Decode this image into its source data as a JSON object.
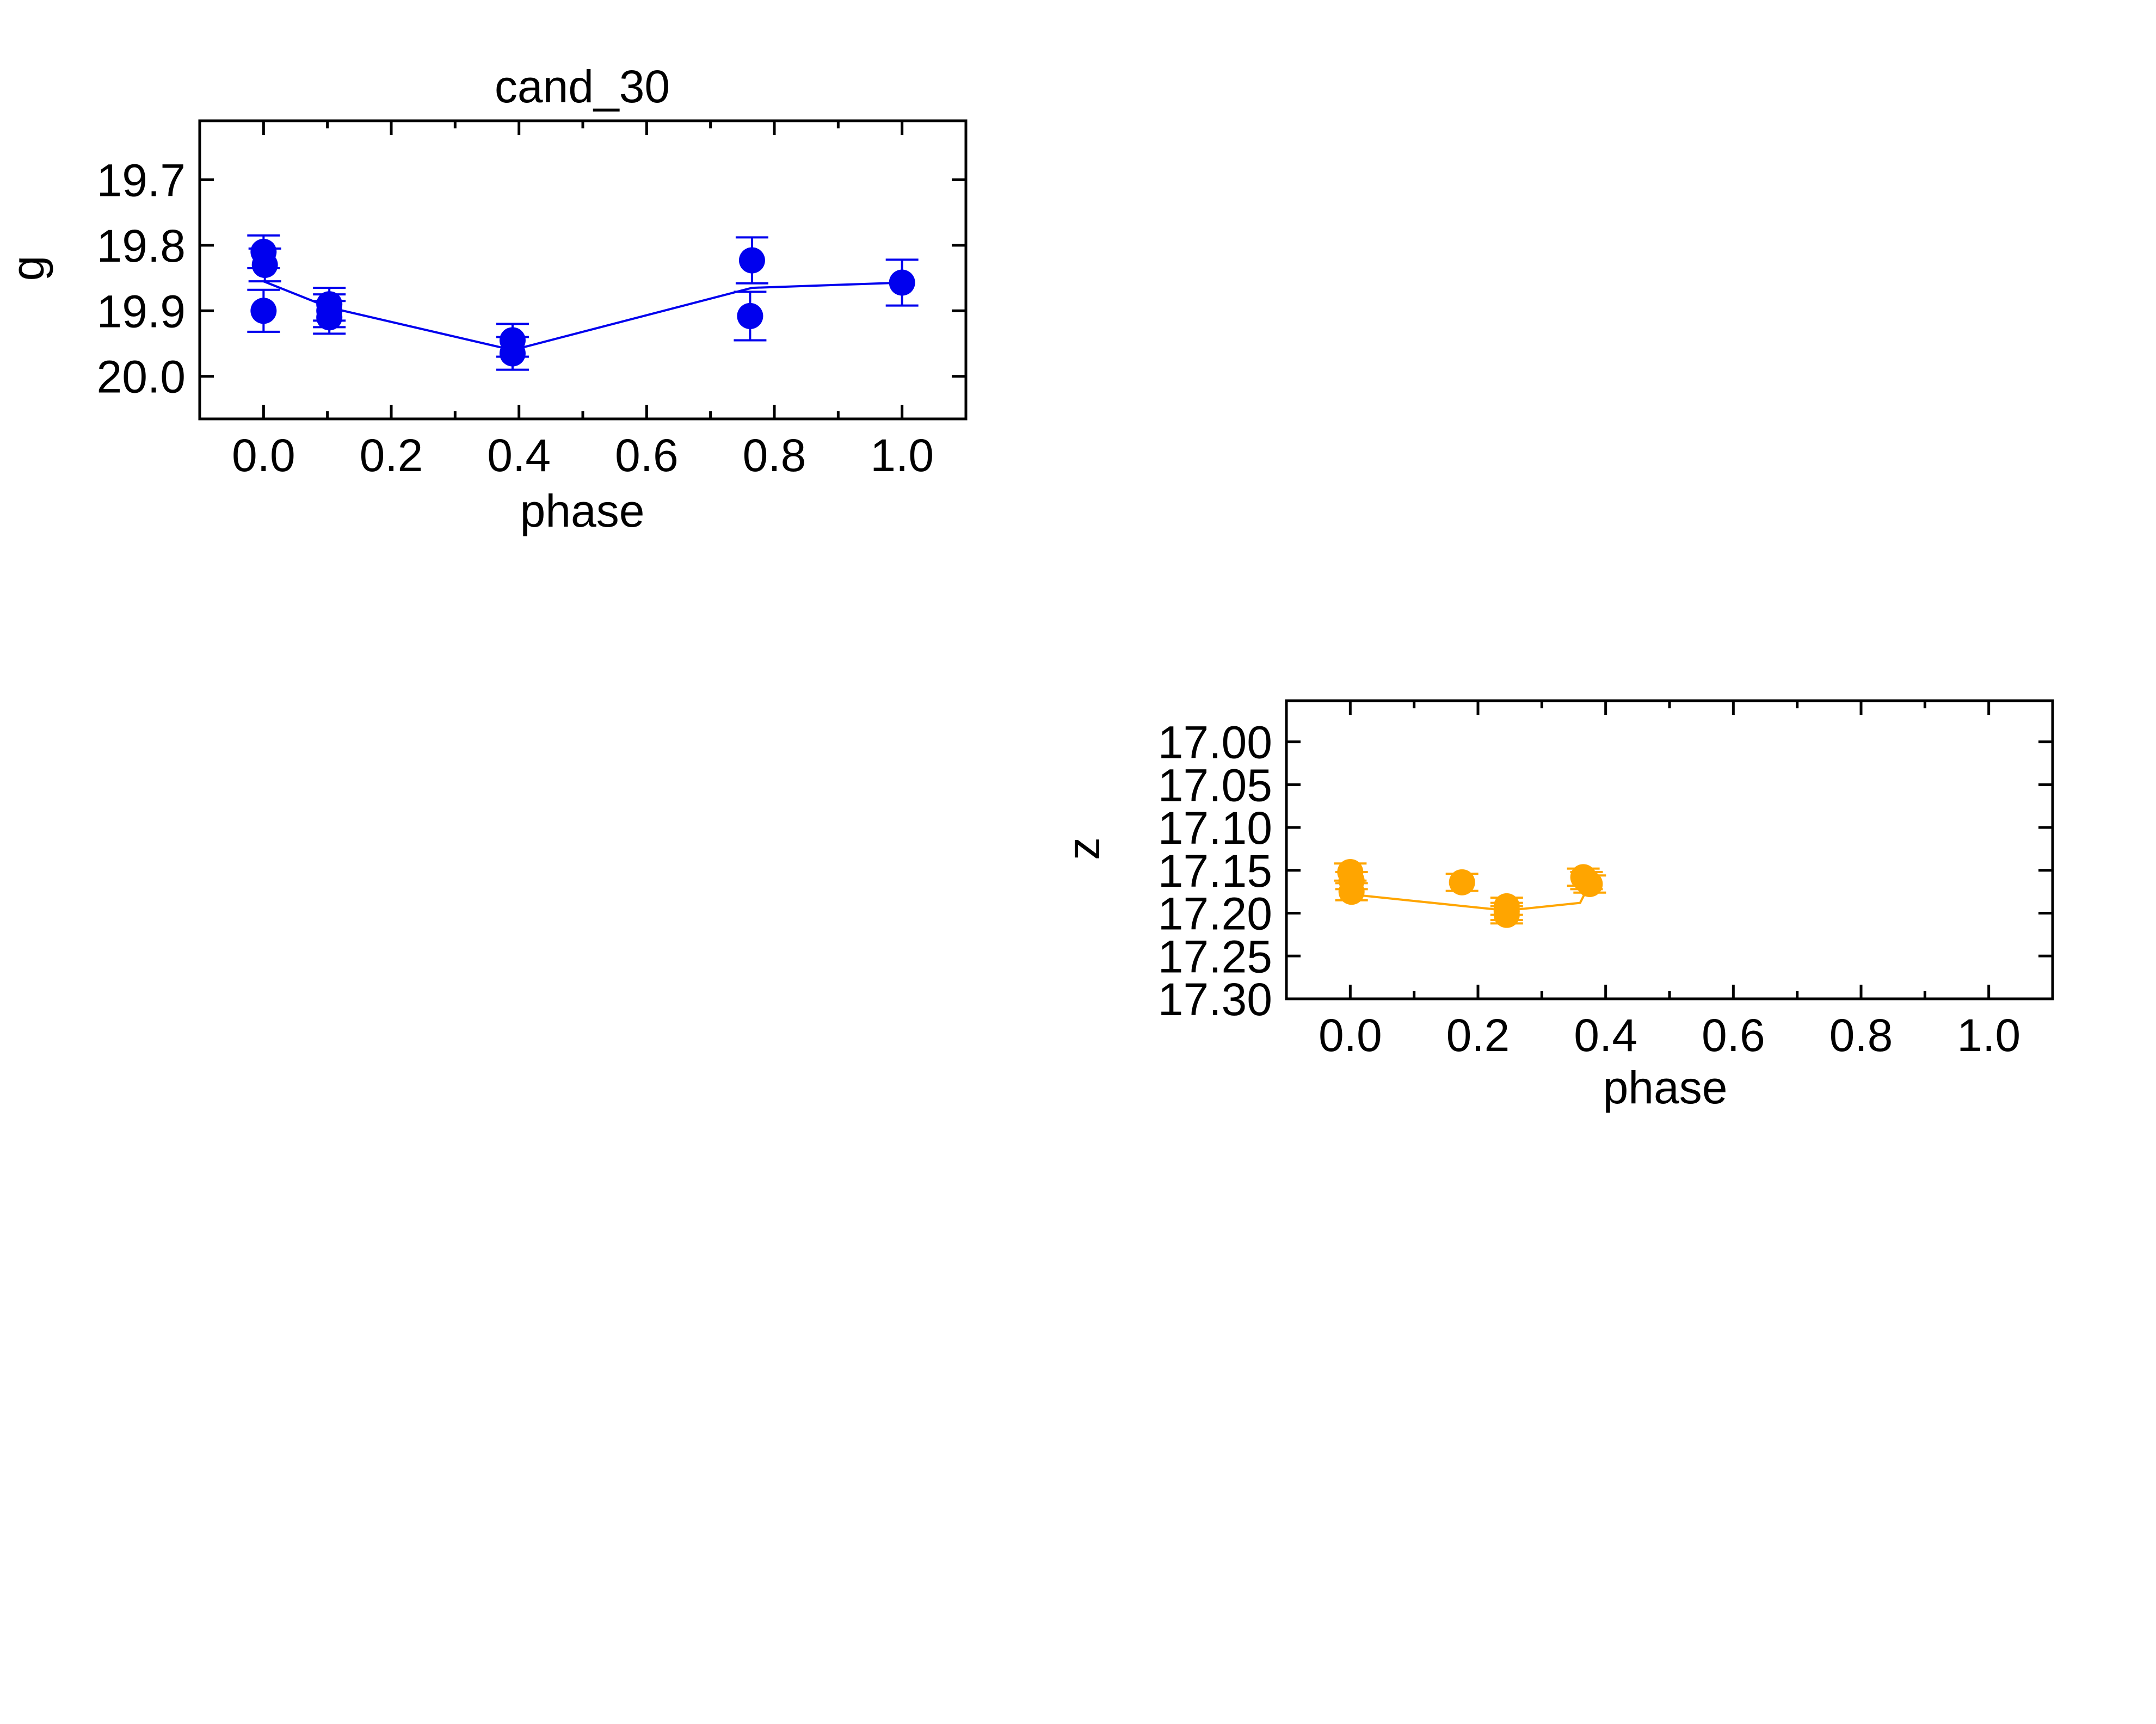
{
  "chart_data": [
    {
      "type": "scatter",
      "title": "cand_30",
      "xlabel": "phase",
      "ylabel": "g",
      "xlim": [
        -0.1,
        1.1
      ],
      "ylim": [
        20.065,
        19.61
      ],
      "y_inverted": true,
      "x_ticks": [
        "0.0",
        "0.2",
        "0.4",
        "0.6",
        "0.8",
        "1.0"
      ],
      "x_tick_values": [
        0.0,
        0.2,
        0.4,
        0.6,
        0.8,
        1.0
      ],
      "y_ticks": [
        "19.7",
        "19.8",
        "19.9",
        "20.0"
      ],
      "y_tick_values": [
        19.7,
        19.8,
        19.9,
        20.0
      ],
      "grid": false,
      "color": "#0000ee",
      "points": [
        {
          "x": 0.0,
          "y": 19.81,
          "err": 0.025
        },
        {
          "x": 0.002,
          "y": 19.83,
          "err": 0.025
        },
        {
          "x": 0.0,
          "y": 19.9,
          "err": 0.032
        },
        {
          "x": 0.103,
          "y": 19.89,
          "err": 0.025
        },
        {
          "x": 0.103,
          "y": 19.9,
          "err": 0.025
        },
        {
          "x": 0.103,
          "y": 19.91,
          "err": 0.025
        },
        {
          "x": 0.39,
          "y": 19.945,
          "err": 0.025
        },
        {
          "x": 0.39,
          "y": 19.965,
          "err": 0.025
        },
        {
          "x": 0.765,
          "y": 19.823,
          "err": 0.035
        },
        {
          "x": 0.762,
          "y": 19.908,
          "err": 0.037
        },
        {
          "x": 1.0,
          "y": 19.857,
          "err": 0.035
        }
      ],
      "model_line": [
        {
          "x": 0.0,
          "y": 19.855
        },
        {
          "x": 0.103,
          "y": 19.895
        },
        {
          "x": 0.39,
          "y": 19.96
        },
        {
          "x": 0.765,
          "y": 19.865
        },
        {
          "x": 1.0,
          "y": 19.857
        }
      ]
    },
    {
      "type": "scatter",
      "title": "",
      "xlabel": "phase",
      "ylabel": "z",
      "xlim": [
        -0.1,
        1.1
      ],
      "ylim": [
        17.3,
        16.952
      ],
      "y_inverted": true,
      "x_ticks": [
        "0.0",
        "0.2",
        "0.4",
        "0.6",
        "0.8",
        "1.0"
      ],
      "x_tick_values": [
        0.0,
        0.2,
        0.4,
        0.6,
        0.8,
        1.0
      ],
      "y_ticks": [
        "17.00",
        "17.05",
        "17.10",
        "17.15",
        "17.20",
        "17.25",
        "17.30"
      ],
      "y_tick_values": [
        17.0,
        17.05,
        17.1,
        17.15,
        17.2,
        17.25,
        17.3
      ],
      "grid": false,
      "color": "#ffa500",
      "points": [
        {
          "x": 0.0,
          "y": 17.152,
          "err": 0.01
        },
        {
          "x": 0.002,
          "y": 17.162,
          "err": 0.01
        },
        {
          "x": 0.002,
          "y": 17.175,
          "err": 0.01
        },
        {
          "x": 0.175,
          "y": 17.164,
          "err": 0.01
        },
        {
          "x": 0.245,
          "y": 17.192,
          "err": 0.01
        },
        {
          "x": 0.245,
          "y": 17.198,
          "err": 0.01
        },
        {
          "x": 0.245,
          "y": 17.202,
          "err": 0.01
        },
        {
          "x": 0.365,
          "y": 17.158,
          "err": 0.01
        },
        {
          "x": 0.37,
          "y": 17.162,
          "err": 0.01
        },
        {
          "x": 0.375,
          "y": 17.166,
          "err": 0.01
        }
      ],
      "model_line": [
        {
          "x": 0.0,
          "y": 17.178
        },
        {
          "x": 0.245,
          "y": 17.197
        },
        {
          "x": 0.36,
          "y": 17.188
        },
        {
          "x": 0.375,
          "y": 17.166
        }
      ]
    }
  ]
}
